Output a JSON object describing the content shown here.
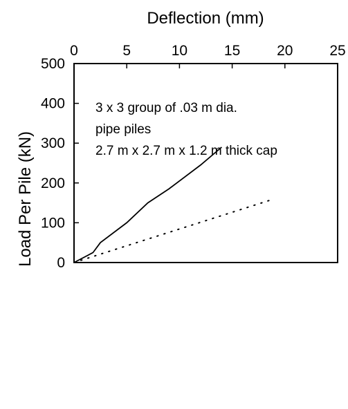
{
  "chart_data": {
    "type": "line",
    "xlabel": "Deflection (mm)",
    "ylabel": "Load Per Pile (kN)",
    "x_axis_position": "top",
    "xlim": [
      0,
      25
    ],
    "ylim": [
      0,
      500
    ],
    "x_ticks": [
      "0",
      "5",
      "10",
      "15",
      "20",
      "25"
    ],
    "y_ticks": [
      "0",
      "100",
      "200",
      "300",
      "400",
      "500"
    ],
    "grid": false,
    "annotation_lines": [
      "3 x 3 group of .03 m dia.",
      "pipe piles",
      "2.7 m x 2.7 m x 1.2 m thick cap"
    ],
    "series": [
      {
        "style": "solid",
        "color": "#000000",
        "points": [
          [
            0,
            0
          ],
          [
            1.8,
            25
          ],
          [
            2.5,
            50
          ],
          [
            5,
            100
          ],
          [
            7,
            150
          ],
          [
            9,
            185
          ],
          [
            12,
            245
          ],
          [
            14,
            290
          ]
        ]
      },
      {
        "style": "dotted",
        "color": "#000000",
        "points": [
          [
            0,
            0
          ],
          [
            19,
            160
          ]
        ]
      }
    ]
  }
}
